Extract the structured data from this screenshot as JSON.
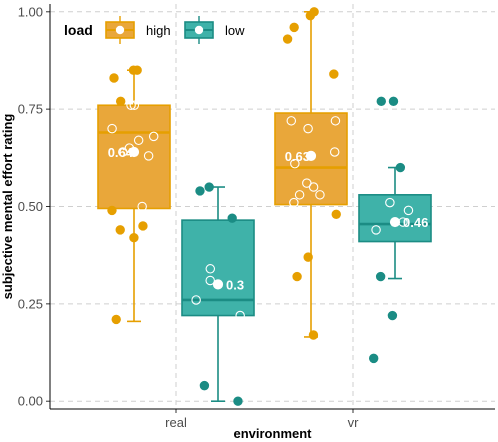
{
  "chart_data": {
    "type": "box",
    "xlabel": "environment",
    "ylabel": "subjective mental effort rating",
    "ylim": [
      -0.02,
      1.02
    ],
    "yticks": [
      0.0,
      0.25,
      0.5,
      0.75,
      1.0
    ],
    "ytick_labels": [
      "0.00",
      "0.25",
      "0.50",
      "0.75",
      "1.00"
    ],
    "categories": [
      "real",
      "vr"
    ],
    "grid": "dashed",
    "legend": {
      "title": "load",
      "position": "top-left",
      "entries": [
        {
          "label": "high",
          "color": "#E69F00"
        },
        {
          "label": "low",
          "color": "#1FA096"
        }
      ]
    },
    "series": [
      {
        "name": "high",
        "color": "#E69F00",
        "fill": "#E9A73A",
        "boxes": [
          {
            "category": "real",
            "min": 0.205,
            "q1": 0.495,
            "median": 0.69,
            "q3": 0.76,
            "max": 0.85,
            "mean": 0.64,
            "mean_label": "0.64",
            "points": [
              0.85,
              0.85,
              0.83,
              0.77,
              0.76,
              0.76,
              0.7,
              0.68,
              0.67,
              0.65,
              0.64,
              0.63,
              0.5,
              0.49,
              0.42,
              0.44,
              0.45,
              0.21
            ]
          },
          {
            "category": "vr",
            "min": 0.165,
            "q1": 0.505,
            "median": 0.6,
            "q3": 0.74,
            "max": 1.0,
            "mean": 0.63,
            "mean_label": "0.63",
            "points": [
              1.0,
              0.99,
              0.96,
              0.93,
              0.84,
              0.72,
              0.72,
              0.7,
              0.64,
              0.61,
              0.56,
              0.55,
              0.53,
              0.53,
              0.51,
              0.48,
              0.37,
              0.32,
              0.17
            ]
          }
        ]
      },
      {
        "name": "low",
        "color": "#1B8C84",
        "fill": "#3FB2A9",
        "boxes": [
          {
            "category": "real",
            "min": 0.0,
            "q1": 0.22,
            "median": 0.26,
            "q3": 0.465,
            "max": 0.55,
            "mean": 0.3,
            "mean_label": "0.3",
            "points": [
              0.55,
              0.54,
              0.47,
              0.34,
              0.31,
              0.26,
              0.22,
              0.04,
              0.0
            ]
          },
          {
            "category": "vr",
            "min": 0.315,
            "q1": 0.41,
            "median": 0.455,
            "q3": 0.53,
            "max": 0.6,
            "mean": 0.46,
            "mean_label": "0.46",
            "points": [
              0.77,
              0.77,
              0.6,
              0.51,
              0.49,
              0.46,
              0.44,
              0.32,
              0.22,
              0.11
            ]
          }
        ]
      }
    ]
  }
}
